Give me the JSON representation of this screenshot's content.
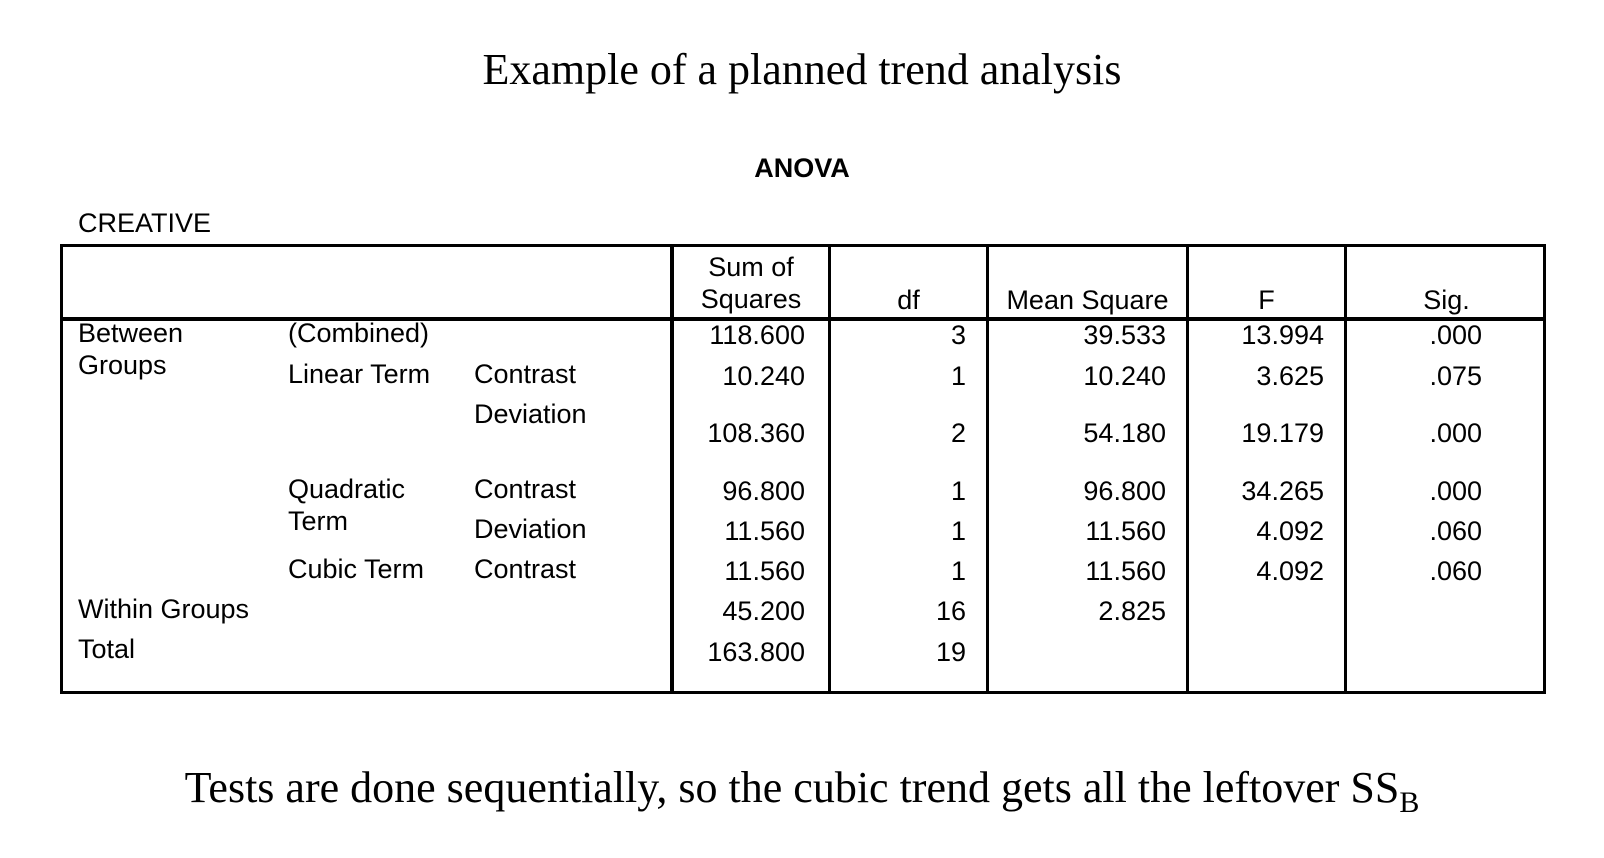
{
  "title": "Example of a planned trend analysis",
  "table_title": "ANOVA",
  "variable_name": "CREATIVE",
  "headers": {
    "sum_of_squares_line1": "Sum of",
    "sum_of_squares_line2": "Squares",
    "df": "df",
    "mean_square": "Mean Square",
    "f": "F",
    "sig": "Sig."
  },
  "row_labels": {
    "between_line1": "Between",
    "between_line2": "Groups",
    "combined": "(Combined)",
    "linear_term": "Linear Term",
    "contrast": "Contrast",
    "deviation": "Deviation",
    "quadratic_line1": "Quadratic",
    "quadratic_line2": "Term",
    "cubic_term": "Cubic Term",
    "within_groups": "Within Groups",
    "total": "Total"
  },
  "rows": [
    {
      "ss": "118.600",
      "df": "3",
      "ms": "39.533",
      "f": "13.994",
      "sig": ".000"
    },
    {
      "ss": "10.240",
      "df": "1",
      "ms": "10.240",
      "f": "3.625",
      "sig": ".075"
    },
    {
      "ss": "108.360",
      "df": "2",
      "ms": "54.180",
      "f": "19.179",
      "sig": ".000"
    },
    {
      "ss": "96.800",
      "df": "1",
      "ms": "96.800",
      "f": "34.265",
      "sig": ".000"
    },
    {
      "ss": "11.560",
      "df": "1",
      "ms": "11.560",
      "f": "4.092",
      "sig": ".060"
    },
    {
      "ss": "11.560",
      "df": "1",
      "ms": "11.560",
      "f": "4.092",
      "sig": ".060"
    },
    {
      "ss": "45.200",
      "df": "16",
      "ms": "2.825",
      "f": "",
      "sig": ""
    },
    {
      "ss": "163.800",
      "df": "19",
      "ms": "",
      "f": "",
      "sig": ""
    }
  ],
  "footer": {
    "text": "Tests are done sequentially, so the cubic trend gets all the leftover SS",
    "subscript": "B"
  }
}
